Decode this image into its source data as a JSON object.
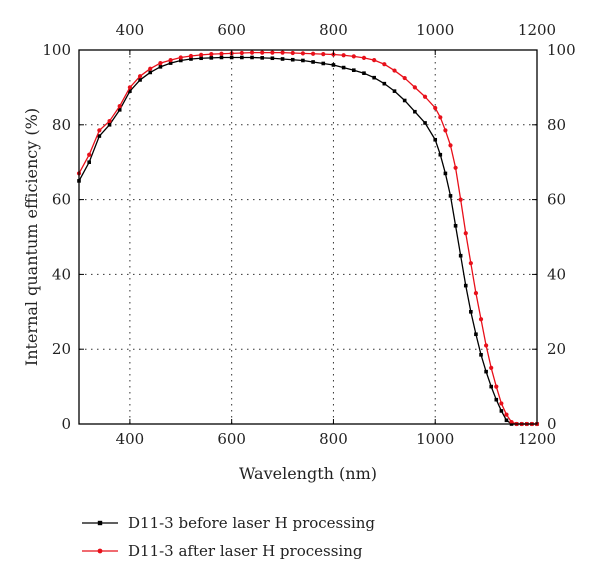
{
  "chart_data": {
    "type": "line",
    "xlabel": "Wavelength (nm)",
    "ylabel": "Internal quantum efficiency (%)",
    "xlim": [
      300,
      1200
    ],
    "ylim": [
      0,
      100
    ],
    "x_ticks": [
      400,
      600,
      800,
      1000,
      1200
    ],
    "y_ticks": [
      0,
      20,
      40,
      60,
      80,
      100
    ],
    "top_x_ticks": [
      400,
      600,
      800,
      1000,
      1200
    ],
    "right_y_ticks": [
      0,
      20,
      40,
      60,
      80,
      100
    ],
    "grid": true,
    "legend_position": "bottom",
    "series": [
      {
        "name": "D11-3 before laser H processing",
        "color": "#000000",
        "marker": "square",
        "x": [
          300,
          320,
          340,
          360,
          380,
          400,
          420,
          440,
          460,
          480,
          500,
          520,
          540,
          560,
          580,
          600,
          620,
          640,
          660,
          680,
          700,
          720,
          740,
          760,
          780,
          800,
          820,
          840,
          860,
          880,
          900,
          920,
          940,
          960,
          980,
          1000,
          1010,
          1020,
          1030,
          1040,
          1050,
          1060,
          1070,
          1080,
          1090,
          1100,
          1110,
          1120,
          1130,
          1140,
          1150,
          1160,
          1170,
          1180,
          1190,
          1200
        ],
        "y": [
          65,
          70,
          77,
          80,
          84,
          89,
          92,
          94,
          95.5,
          96.5,
          97.2,
          97.6,
          97.8,
          97.9,
          98,
          98,
          98,
          98,
          97.9,
          97.8,
          97.6,
          97.4,
          97.2,
          96.8,
          96.4,
          96,
          95.3,
          94.6,
          93.8,
          92.6,
          91,
          89,
          86.5,
          83.5,
          80.5,
          76,
          72,
          67,
          61,
          53,
          45,
          37,
          30,
          24,
          18.5,
          14,
          10,
          6.5,
          3.5,
          1,
          0,
          0,
          0,
          0,
          0,
          0
        ]
      },
      {
        "name": "D11-3 after laser H processing",
        "color": "#e8101a",
        "marker": "circle",
        "x": [
          300,
          320,
          340,
          360,
          380,
          400,
          420,
          440,
          460,
          480,
          500,
          520,
          540,
          560,
          580,
          600,
          620,
          640,
          660,
          680,
          700,
          720,
          740,
          760,
          780,
          800,
          820,
          840,
          860,
          880,
          900,
          920,
          940,
          960,
          980,
          1000,
          1010,
          1020,
          1030,
          1040,
          1050,
          1060,
          1070,
          1080,
          1090,
          1100,
          1110,
          1120,
          1130,
          1140,
          1150,
          1160,
          1170,
          1180,
          1190,
          1200
        ],
        "y": [
          67,
          72,
          78.5,
          81,
          85,
          90,
          93,
          95,
          96.5,
          97.3,
          98,
          98.4,
          98.7,
          98.9,
          99,
          99.1,
          99.2,
          99.3,
          99.3,
          99.3,
          99.3,
          99.2,
          99.1,
          99,
          98.9,
          98.8,
          98.6,
          98.3,
          97.9,
          97.3,
          96.2,
          94.5,
          92.5,
          90,
          87.5,
          84.5,
          82,
          78.5,
          74.5,
          68.5,
          60,
          51,
          43,
          35,
          28,
          21,
          15,
          10,
          5.5,
          2.5,
          0.5,
          0,
          0,
          0,
          0,
          0
        ]
      }
    ]
  }
}
